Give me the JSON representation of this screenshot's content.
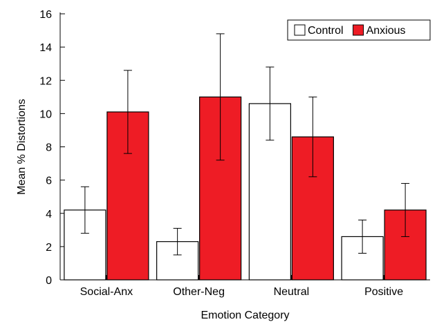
{
  "chart_data": {
    "type": "bar",
    "xlabel": "Emotion Category",
    "ylabel": "Mean % Distortions",
    "ylim": [
      0,
      16
    ],
    "yticks": [
      0,
      2,
      4,
      6,
      8,
      10,
      12,
      14,
      16
    ],
    "categories": [
      "Social-Anx",
      "Other-Neg",
      "Neutral",
      "Positive"
    ],
    "series": [
      {
        "name": "Control",
        "color": "#ffffff",
        "values": [
          4.2,
          2.3,
          10.6,
          2.6
        ],
        "err_low": [
          2.8,
          1.5,
          8.4,
          1.6
        ],
        "err_high": [
          5.6,
          3.1,
          12.8,
          3.6
        ]
      },
      {
        "name": "Anxious",
        "color": "#ee1c25",
        "values": [
          10.1,
          11.0,
          8.6,
          4.2
        ],
        "err_low": [
          7.6,
          7.2,
          6.2,
          2.6
        ],
        "err_high": [
          12.6,
          14.8,
          11.0,
          5.8
        ]
      }
    ],
    "legend_position": "top-right",
    "grid": false
  }
}
